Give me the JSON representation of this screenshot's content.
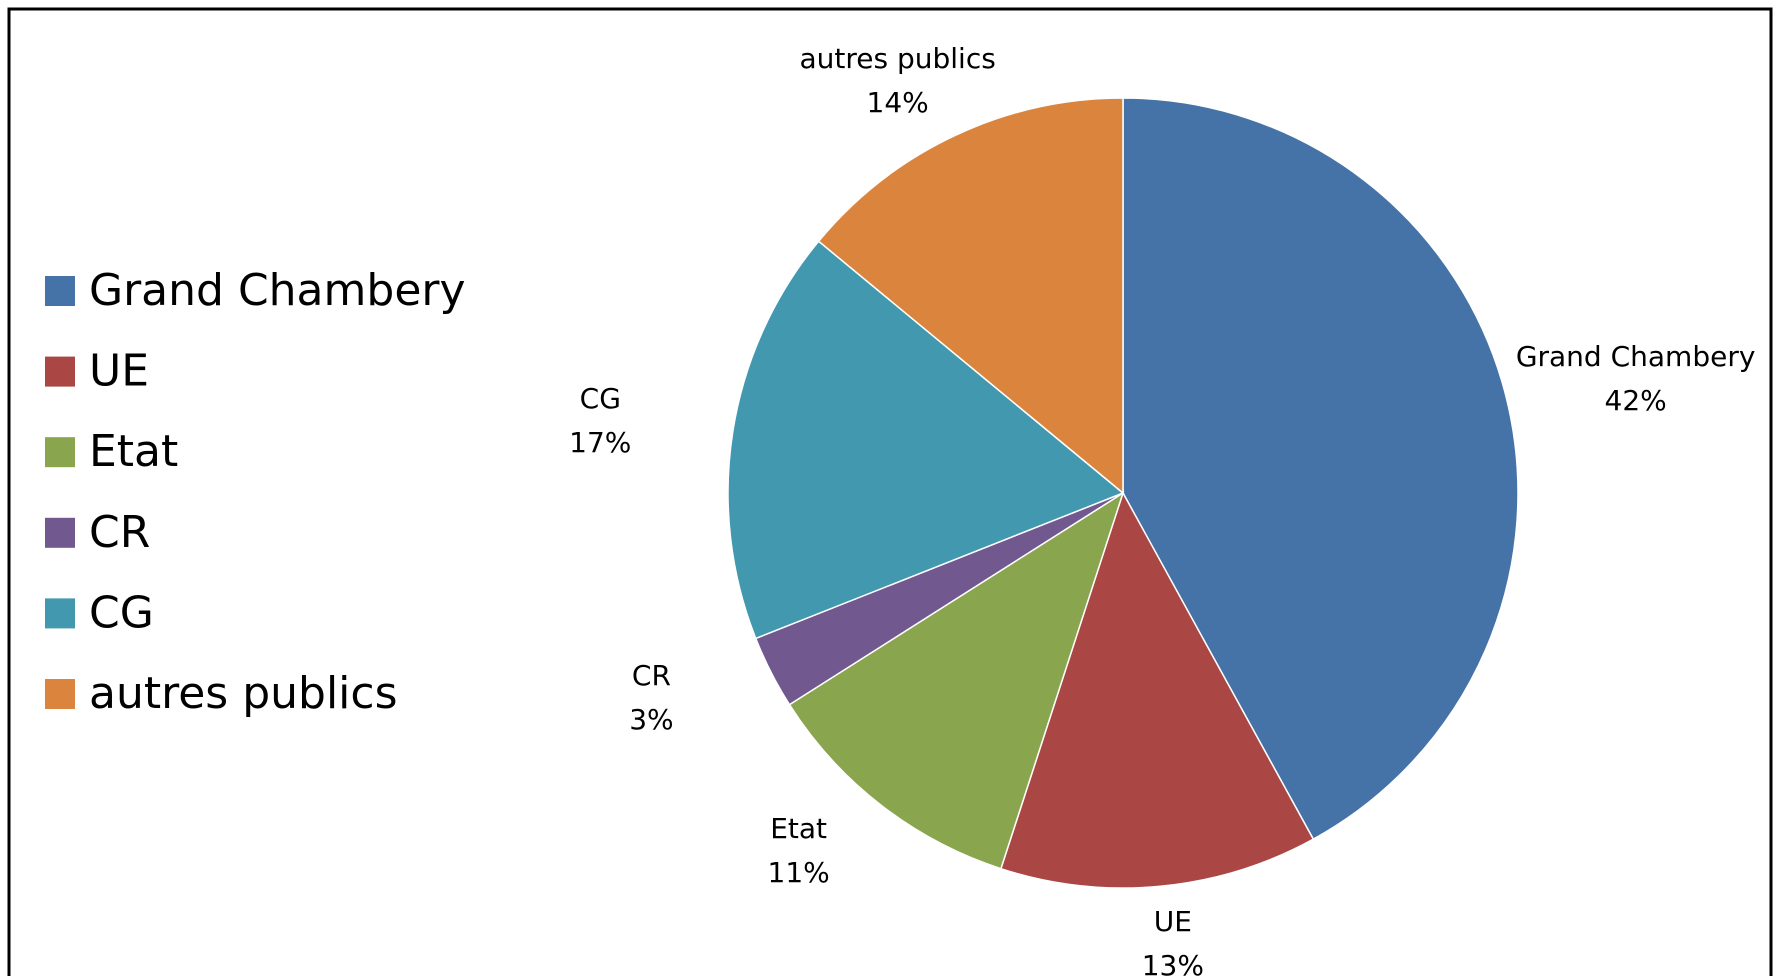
{
  "chart_data": {
    "type": "pie",
    "categories": [
      "Grand Chambery",
      "UE",
      "Etat",
      "CR",
      "CG",
      "autres publics"
    ],
    "values": [
      42,
      13,
      11,
      3,
      17,
      14
    ],
    "value_labels": [
      "42%",
      "13%",
      "11%",
      "3%",
      "17%",
      "14%"
    ],
    "colors": [
      "#4572a7",
      "#aa4643",
      "#89a54e",
      "#71588f",
      "#4198af",
      "#db843d"
    ],
    "legend": "left"
  }
}
